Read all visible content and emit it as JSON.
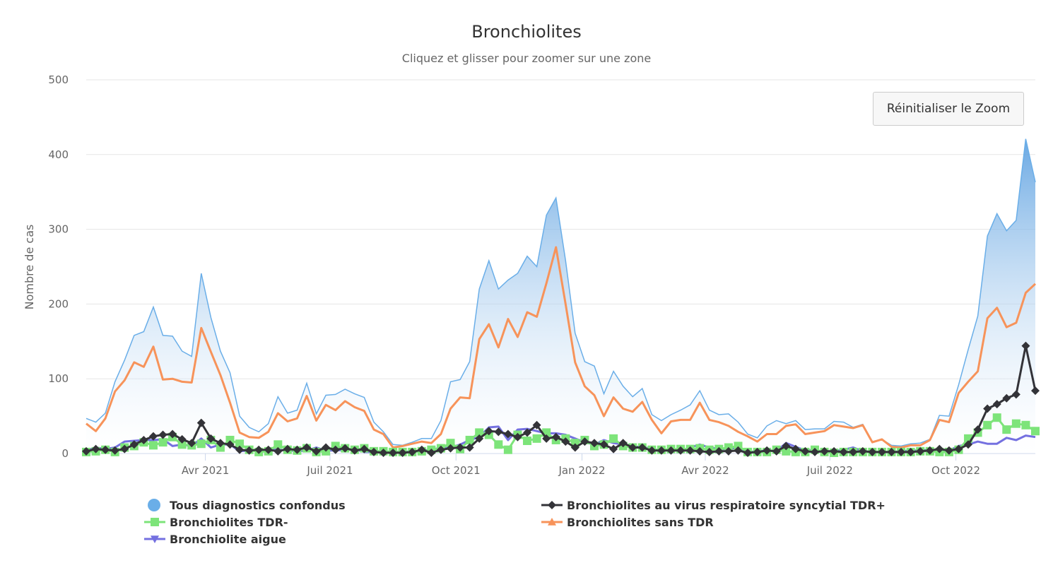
{
  "chart_data": {
    "type": "line",
    "title": "Bronchiolites",
    "subtitle": "Cliquez et glisser pour zoomer sur une zone",
    "ylabel": "Nombre de cas",
    "xlabel": "",
    "ylim": [
      0,
      500
    ],
    "yticks": [
      0,
      100,
      200,
      300,
      400,
      500
    ],
    "xticks": [
      {
        "date": "2021-04-01",
        "label": "Avr 2021"
      },
      {
        "date": "2021-07-01",
        "label": "Juil 2021"
      },
      {
        "date": "2021-10-01",
        "label": "Oct 2021"
      },
      {
        "date": "2022-01-01",
        "label": "Jan 2022"
      },
      {
        "date": "2022-04-01",
        "label": "Avr 2022"
      },
      {
        "date": "2022-07-01",
        "label": "Juil 2022"
      },
      {
        "date": "2022-10-01",
        "label": "Oct 2022"
      }
    ],
    "grid": true,
    "legend_position": "bottom",
    "x": [
      "2021-01-04",
      "2021-01-11",
      "2021-01-18",
      "2021-01-25",
      "2021-02-01",
      "2021-02-08",
      "2021-02-15",
      "2021-02-22",
      "2021-03-01",
      "2021-03-08",
      "2021-03-15",
      "2021-03-22",
      "2021-03-29",
      "2021-04-05",
      "2021-04-12",
      "2021-04-19",
      "2021-04-26",
      "2021-05-03",
      "2021-05-10",
      "2021-05-17",
      "2021-05-24",
      "2021-05-31",
      "2021-06-07",
      "2021-06-14",
      "2021-06-21",
      "2021-06-28",
      "2021-07-05",
      "2021-07-12",
      "2021-07-19",
      "2021-07-26",
      "2021-08-02",
      "2021-08-09",
      "2021-08-16",
      "2021-08-23",
      "2021-08-30",
      "2021-09-06",
      "2021-09-13",
      "2021-09-20",
      "2021-09-27",
      "2021-10-04",
      "2021-10-11",
      "2021-10-18",
      "2021-10-25",
      "2021-11-01",
      "2021-11-08",
      "2021-11-15",
      "2021-11-22",
      "2021-11-29",
      "2021-12-06",
      "2021-12-13",
      "2021-12-20",
      "2021-12-27",
      "2022-01-03",
      "2022-01-10",
      "2022-01-17",
      "2022-01-24",
      "2022-01-31",
      "2022-02-07",
      "2022-02-14",
      "2022-02-21",
      "2022-02-28",
      "2022-03-07",
      "2022-03-14",
      "2022-03-21",
      "2022-03-28",
      "2022-04-04",
      "2022-04-11",
      "2022-04-18",
      "2022-04-25",
      "2022-05-02",
      "2022-05-09",
      "2022-05-16",
      "2022-05-23",
      "2022-05-30",
      "2022-06-06",
      "2022-06-13",
      "2022-06-20",
      "2022-06-27",
      "2022-07-04",
      "2022-07-11",
      "2022-07-18",
      "2022-07-25",
      "2022-08-01",
      "2022-08-08",
      "2022-08-15",
      "2022-08-22",
      "2022-08-29",
      "2022-09-05",
      "2022-09-12",
      "2022-09-19",
      "2022-09-26",
      "2022-10-03",
      "2022-10-10",
      "2022-10-17",
      "2022-10-24",
      "2022-10-31",
      "2022-11-07",
      "2022-11-14",
      "2022-11-21",
      "2022-11-28"
    ],
    "series": [
      {
        "name": "Tous diagnostics confondus",
        "kind": "area",
        "color": "#6aaee8",
        "marker": "circle",
        "values": [
          47,
          42,
          54,
          96,
          125,
          158,
          163,
          196,
          158,
          157,
          137,
          130,
          241,
          182,
          137,
          108,
          50,
          35,
          29,
          40,
          76,
          54,
          58,
          94,
          53,
          78,
          79,
          86,
          80,
          75,
          42,
          29,
          12,
          11,
          15,
          20,
          20,
          44,
          96,
          99,
          123,
          220,
          258,
          220,
          232,
          241,
          264,
          250,
          319,
          342,
          258,
          161,
          123,
          117,
          80,
          110,
          90,
          76,
          87,
          52,
          44,
          52,
          58,
          65,
          84,
          58,
          52,
          53,
          42,
          26,
          21,
          37,
          44,
          40,
          44,
          32,
          33,
          33,
          43,
          42,
          35,
          39,
          16,
          19,
          11,
          10,
          13,
          14,
          19,
          51,
          50,
          92,
          139,
          184,
          291,
          321,
          298,
          312,
          421,
          363
        ]
      },
      {
        "name": "Bronchiolites au virus respiratoire syncytial TDR+",
        "kind": "line",
        "color": "#333338",
        "marker": "diamond",
        "values": [
          3,
          6,
          5,
          4,
          6,
          12,
          18,
          23,
          25,
          26,
          19,
          14,
          41,
          20,
          14,
          12,
          5,
          4,
          5,
          5,
          3,
          6,
          5,
          8,
          3,
          8,
          5,
          7,
          4,
          6,
          2,
          1,
          1,
          1,
          2,
          5,
          1,
          5,
          7,
          8,
          8,
          20,
          30,
          29,
          26,
          22,
          28,
          38,
          20,
          22,
          16,
          8,
          16,
          14,
          12,
          6,
          14,
          8,
          8,
          4,
          4,
          4,
          4,
          4,
          3,
          2,
          3,
          3,
          4,
          1,
          2,
          4,
          3,
          10,
          6,
          3,
          2,
          3,
          3,
          2,
          2,
          3,
          2,
          2,
          2,
          2,
          2,
          3,
          4,
          6,
          4,
          6,
          12,
          32,
          60,
          66,
          74,
          79,
          144,
          84
        ]
      },
      {
        "name": "Bronchiolites TDR-",
        "kind": "line",
        "color": "#7de47a",
        "marker": "square",
        "values": [
          2,
          3,
          5,
          2,
          8,
          10,
          15,
          11,
          15,
          22,
          12,
          11,
          13,
          18,
          8,
          18,
          13,
          5,
          2,
          3,
          12,
          5,
          4,
          7,
          2,
          3,
          10,
          7,
          5,
          7,
          3,
          3,
          2,
          2,
          2,
          3,
          5,
          7,
          14,
          6,
          18,
          28,
          25,
          12,
          5,
          25,
          17,
          20,
          28,
          18,
          20,
          14,
          18,
          10,
          12,
          20,
          10,
          8,
          8,
          5,
          5,
          6,
          6,
          6,
          7,
          5,
          6,
          8,
          10,
          2,
          2,
          2,
          5,
          3,
          2,
          2,
          5,
          2,
          1,
          2,
          2,
          2,
          2,
          2,
          2,
          2,
          2,
          3,
          3,
          2,
          2,
          5,
          20,
          28,
          38,
          48,
          32,
          40,
          38,
          30
        ]
      },
      {
        "name": "Bronchiolites sans TDR",
        "kind": "line",
        "color": "#f7935a",
        "marker": "triangle",
        "values": [
          40,
          30,
          47,
          83,
          98,
          122,
          116,
          143,
          99,
          100,
          96,
          95,
          168,
          136,
          105,
          68,
          28,
          22,
          21,
          29,
          54,
          43,
          47,
          77,
          44,
          65,
          58,
          70,
          62,
          57,
          32,
          26,
          8,
          10,
          13,
          16,
          14,
          26,
          60,
          75,
          74,
          153,
          173,
          142,
          180,
          156,
          189,
          183,
          228,
          276,
          200,
          122,
          90,
          78,
          50,
          75,
          60,
          56,
          69,
          45,
          27,
          43,
          45,
          45,
          68,
          45,
          42,
          37,
          29,
          23,
          16,
          26,
          26,
          37,
          39,
          26,
          28,
          30,
          38,
          36,
          34,
          38,
          15,
          19,
          9,
          8,
          11,
          11,
          18,
          45,
          42,
          81,
          96,
          110,
          181,
          195,
          169,
          175,
          215,
          227
        ]
      },
      {
        "name": "Bronchiolite aigue",
        "kind": "line",
        "color": "#7470e0",
        "marker": "triangle-down",
        "values": [
          4,
          8,
          6,
          8,
          16,
          17,
          18,
          18,
          19,
          10,
          12,
          10,
          20,
          8,
          12,
          12,
          3,
          4,
          4,
          5,
          5,
          4,
          3,
          4,
          8,
          4,
          4,
          5,
          6,
          2,
          2,
          2,
          2,
          2,
          3,
          3,
          6,
          7,
          8,
          12,
          18,
          22,
          35,
          36,
          18,
          32,
          33,
          30,
          27,
          27,
          25,
          20,
          15,
          12,
          18,
          14,
          12,
          10,
          8,
          7,
          3,
          7,
          4,
          8,
          12,
          8,
          6,
          6,
          8,
          2,
          3,
          4,
          3,
          14,
          9,
          4,
          5,
          2,
          3,
          5,
          8,
          3,
          2,
          2,
          2,
          3,
          4,
          4,
          5,
          5,
          4,
          10,
          12,
          16,
          13,
          13,
          21,
          18,
          24,
          22
        ]
      }
    ]
  },
  "controls": {
    "reset_zoom_label": "Réinitialiser le Zoom"
  }
}
